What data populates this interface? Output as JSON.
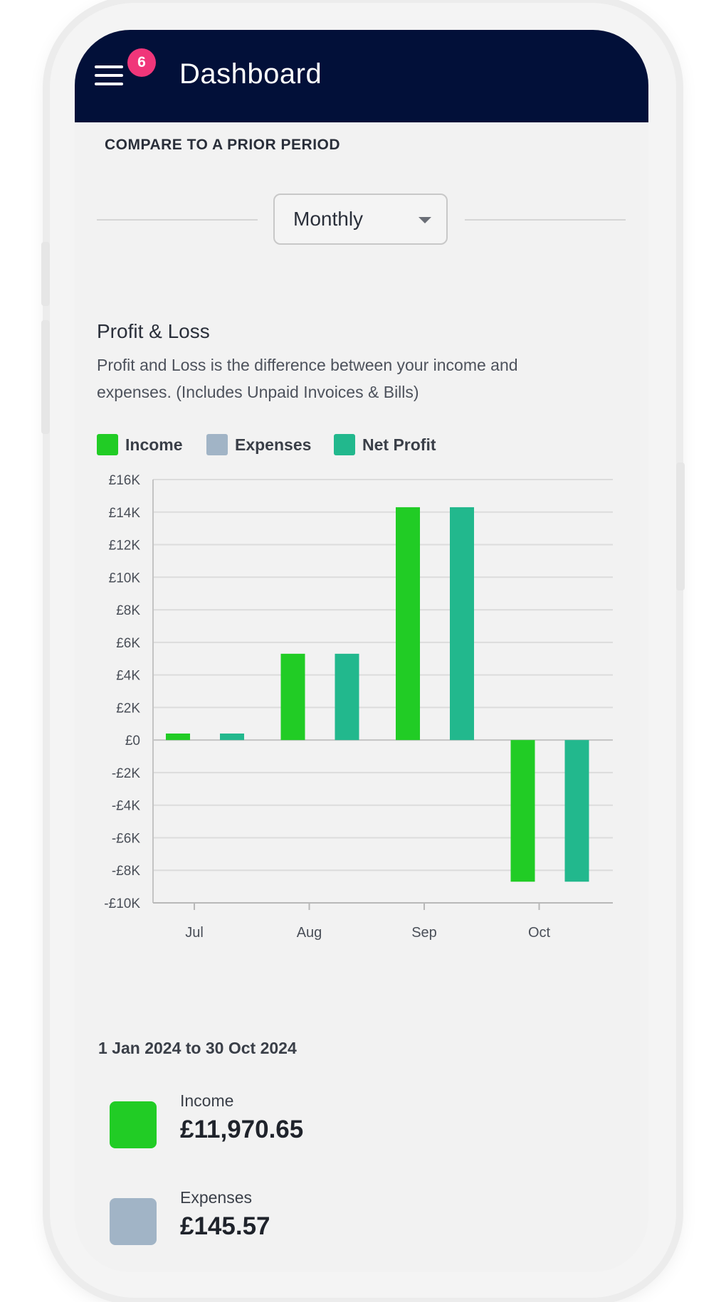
{
  "header": {
    "title": "Dashboard",
    "notification_count": "6",
    "menu_icon": "hamburger-menu-icon"
  },
  "compare": {
    "label": "COMPARE TO A PRIOR PERIOD",
    "selected_period": "Monthly"
  },
  "profit_loss": {
    "title": "Profit & Loss",
    "description": "Profit and Loss is the difference between your income and expenses. (Includes Unpaid Invoices & Bills)"
  },
  "legend": [
    {
      "label": "Income",
      "color": "#21cc25"
    },
    {
      "label": "Expenses",
      "color": "#a1b4c6"
    },
    {
      "label": "Net Profit",
      "color": "#22b88d"
    }
  ],
  "chart_data": {
    "type": "bar",
    "categories": [
      "Jul",
      "Aug",
      "Sep",
      "Oct"
    ],
    "series": [
      {
        "name": "Income",
        "color": "#21cc25",
        "values": [
          400,
          5300,
          14300,
          -8700
        ]
      },
      {
        "name": "Expenses",
        "color": "#a1b4c6",
        "values": [
          0,
          0,
          0,
          0
        ]
      },
      {
        "name": "Net Profit",
        "color": "#22b88d",
        "values": [
          400,
          5300,
          14300,
          -8700
        ]
      }
    ],
    "ylim": [
      -10000,
      16000
    ],
    "yticks": [
      16000,
      14000,
      12000,
      10000,
      8000,
      6000,
      4000,
      2000,
      0,
      -2000,
      -4000,
      -6000,
      -8000,
      -10000
    ],
    "ytick_labels": [
      "£16K",
      "£14K",
      "£12K",
      "£10K",
      "£8K",
      "£6K",
      "£4K",
      "£2K",
      "£0",
      "-£2K",
      "-£4K",
      "-£6K",
      "-£8K",
      "-£10K"
    ],
    "grid": true,
    "legend_position": "top-left"
  },
  "summary": {
    "range": "1 Jan 2024 to 30 Oct 2024",
    "items": [
      {
        "label": "Income",
        "value": "£11,970.65",
        "color": "#21cc25"
      },
      {
        "label": "Expenses",
        "value": "£145.57",
        "color": "#a1b4c6"
      }
    ]
  }
}
